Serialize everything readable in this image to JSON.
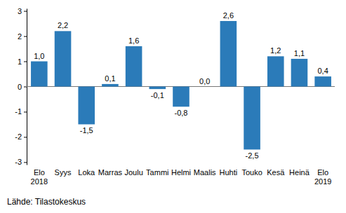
{
  "chart_data": {
    "type": "bar",
    "categories": [
      "Elo 2018",
      "Syys",
      "Loka",
      "Marras",
      "Joulu",
      "Tammi",
      "Helmi",
      "Maalis",
      "Huhti",
      "Touko",
      "Kesä",
      "Heinä",
      "Elo 2019"
    ],
    "values": [
      1.0,
      2.2,
      -1.5,
      0.1,
      1.6,
      -0.1,
      -0.8,
      0.0,
      2.6,
      -2.5,
      1.2,
      1.1,
      0.4
    ],
    "value_labels": [
      "1,0",
      "2,2",
      "-1,5",
      "0,1",
      "1,6",
      "-0,1",
      "-0,8",
      "0,0",
      "2,6",
      "-2,5",
      "1,2",
      "1,1",
      "0,4"
    ],
    "data_labels": true,
    "color": "#2b7bb9",
    "ylim": [
      -3.1,
      3.1
    ],
    "yticks": [
      -3,
      -2,
      -1,
      0,
      1,
      2,
      3
    ],
    "grid": false,
    "source": "Lähde: Tilastokeskus"
  }
}
